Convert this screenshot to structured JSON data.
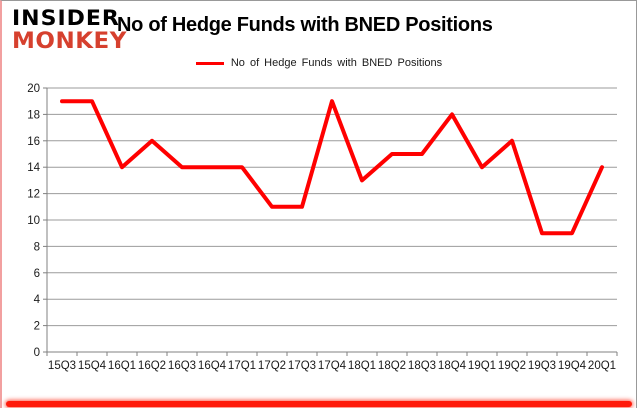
{
  "brand": {
    "line1": "INSIDER",
    "line2": "MONKEY"
  },
  "header": {
    "title": "No of Hedge Funds with BNED Positions"
  },
  "legend": {
    "label": "No of Hedge Funds with BNED Positions"
  },
  "colors": {
    "series": "#ff0000",
    "grid": "#9b9b9b",
    "axis": "#808080",
    "label_text": "#1a1a1a",
    "brand_red": "#d6402e",
    "left_accent": "#f2a0a0",
    "bottom_glow": "#ff1a0a",
    "frame": "#999999"
  },
  "chart_data": {
    "type": "line",
    "title": "No of Hedge Funds with BNED Positions",
    "categories": [
      "15Q3",
      "15Q4",
      "16Q1",
      "16Q2",
      "16Q3",
      "16Q4",
      "17Q1",
      "17Q2",
      "17Q3",
      "17Q4",
      "18Q1",
      "18Q2",
      "18Q3",
      "18Q4",
      "19Q1",
      "19Q2",
      "19Q3",
      "19Q4",
      "20Q1"
    ],
    "series": [
      {
        "name": "No of Hedge Funds with BNED Positions",
        "values": [
          19,
          19,
          14,
          16,
          14,
          14,
          14,
          11,
          11,
          19,
          13,
          15,
          15,
          18,
          14,
          16,
          9,
          9,
          14
        ]
      }
    ],
    "xlabel": "",
    "ylabel": "",
    "ylim": [
      0,
      20
    ],
    "ytick_step": 2,
    "grid": true,
    "legend_position": "top-center"
  }
}
